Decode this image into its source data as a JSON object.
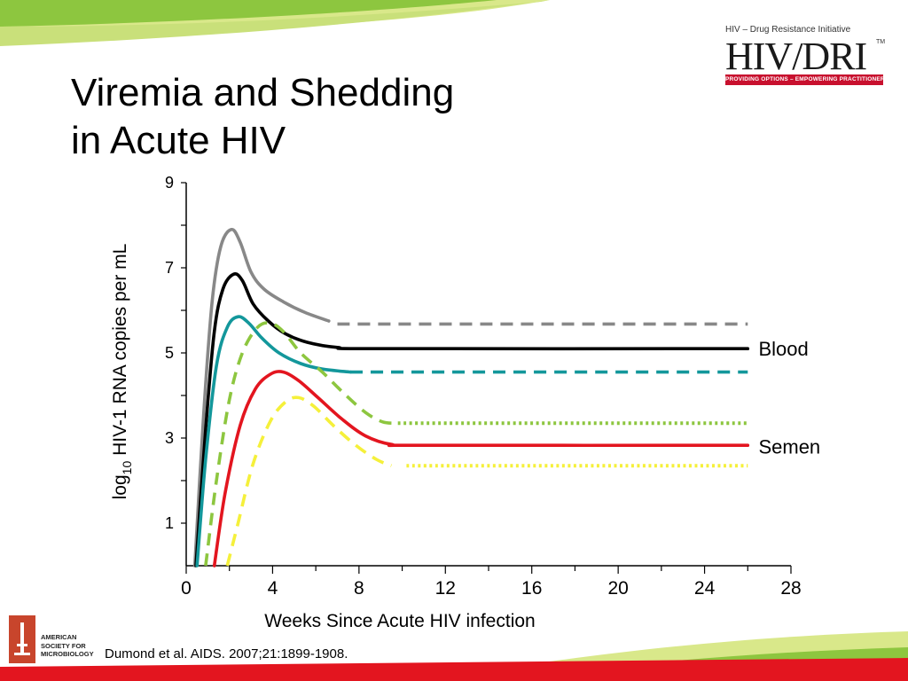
{
  "slide": {
    "title_line1": "Viremia and Shedding",
    "title_line2": "in Acute HIV",
    "citation": "Dumond et al. AIDS. 2007;21:1899-1908.",
    "logo_hiv": {
      "initiative": "HIV – Drug Resistance Initiative",
      "brand": "HIV/DRI",
      "tm": "TM",
      "tagline": "PROVIDING OPTIONS – EMPOWERING PRACTITIONERS"
    },
    "logo_asm": {
      "lines": [
        "AMERICAN",
        "SOCIETY FOR",
        "MICROBIOLOGY"
      ]
    },
    "colors": {
      "accent_green": "#8dc63f",
      "accent_light_green": "#c9e07a",
      "accent_red": "#e3151f"
    }
  },
  "chart_data": {
    "type": "line",
    "xlabel": "Weeks Since Acute HIV infection",
    "ylabel_prefix": "log",
    "ylabel_sub": "10",
    "ylabel_suffix": " HIV-1 RNA copies per mL",
    "xlim": [
      0,
      28
    ],
    "ylim": [
      0,
      9
    ],
    "xticks": [
      0,
      4,
      8,
      12,
      16,
      20,
      24,
      28
    ],
    "yticks": [
      1,
      3,
      5,
      7,
      9
    ],
    "grid": false,
    "annotations": [
      {
        "text": "Blood",
        "x": 26.5,
        "y": 5.1
      },
      {
        "text": "Semen",
        "x": 26.5,
        "y": 2.8
      }
    ],
    "series": [
      {
        "color": "#888888",
        "solid": [
          [
            0.4,
            0
          ],
          [
            0.8,
            3.5
          ],
          [
            1.2,
            6.2
          ],
          [
            1.6,
            7.5
          ],
          [
            2.1,
            7.9
          ],
          [
            2.5,
            7.6
          ],
          [
            3.0,
            6.9
          ],
          [
            3.6,
            6.5
          ],
          [
            4.5,
            6.2
          ],
          [
            5.5,
            5.95
          ],
          [
            6.6,
            5.75
          ]
        ],
        "dashed": [
          [
            7.0,
            5.68
          ],
          [
            26.0,
            5.68
          ]
        ],
        "dash_style": "dashed"
      },
      {
        "color": "#000000",
        "solid": [
          [
            0.45,
            0
          ],
          [
            0.9,
            3.2
          ],
          [
            1.3,
            5.5
          ],
          [
            1.7,
            6.5
          ],
          [
            2.2,
            6.85
          ],
          [
            2.6,
            6.7
          ],
          [
            3.1,
            6.15
          ],
          [
            3.8,
            5.75
          ],
          [
            4.6,
            5.45
          ],
          [
            5.6,
            5.25
          ],
          [
            7.0,
            5.13
          ],
          [
            9.0,
            5.1
          ],
          [
            26.0,
            5.1
          ]
        ],
        "dashed": [],
        "dash_style": "dashed"
      },
      {
        "color": "#13979b",
        "solid": [
          [
            0.5,
            0
          ],
          [
            0.9,
            2.5
          ],
          [
            1.4,
            4.7
          ],
          [
            1.9,
            5.6
          ],
          [
            2.4,
            5.85
          ],
          [
            2.9,
            5.7
          ],
          [
            3.5,
            5.35
          ],
          [
            4.3,
            5.0
          ],
          [
            5.3,
            4.75
          ],
          [
            6.3,
            4.62
          ],
          [
            7.6,
            4.55
          ]
        ],
        "dashed": [
          [
            7.6,
            4.55
          ],
          [
            26.0,
            4.55
          ]
        ],
        "dash_style": "dashed"
      },
      {
        "color": "#8dc63f",
        "solid": [],
        "dashed": [
          [
            0.9,
            0
          ],
          [
            1.4,
            2.0
          ],
          [
            2.0,
            3.9
          ],
          [
            2.6,
            5.0
          ],
          [
            3.3,
            5.6
          ],
          [
            3.9,
            5.7
          ],
          [
            4.5,
            5.5
          ],
          [
            5.3,
            5.0
          ],
          [
            6.3,
            4.55
          ],
          [
            7.3,
            4.05
          ],
          [
            8.3,
            3.6
          ],
          [
            9.1,
            3.38
          ],
          [
            9.8,
            3.35
          ]
        ],
        "dash_style": "dashed"
      },
      {
        "color": "#8dc63f",
        "solid": [],
        "dashed": [
          [
            9.8,
            3.35
          ],
          [
            26.0,
            3.35
          ]
        ],
        "dash_style": "dotted"
      },
      {
        "color": "#e3151f",
        "solid": [
          [
            1.3,
            0
          ],
          [
            1.8,
            1.7
          ],
          [
            2.5,
            3.3
          ],
          [
            3.2,
            4.15
          ],
          [
            3.9,
            4.5
          ],
          [
            4.5,
            4.55
          ],
          [
            5.2,
            4.35
          ],
          [
            6.1,
            3.95
          ],
          [
            7.2,
            3.45
          ],
          [
            8.3,
            3.05
          ],
          [
            9.5,
            2.85
          ],
          [
            11.0,
            2.83
          ],
          [
            26.0,
            2.83
          ]
        ],
        "dashed": [],
        "dash_style": "dashed"
      },
      {
        "color": "#f5f03a",
        "solid": [],
        "dashed": [
          [
            1.9,
            0
          ],
          [
            2.4,
            1.0
          ],
          [
            3.1,
            2.4
          ],
          [
            3.9,
            3.4
          ],
          [
            4.6,
            3.85
          ],
          [
            5.2,
            3.95
          ],
          [
            5.9,
            3.75
          ],
          [
            6.8,
            3.3
          ],
          [
            7.8,
            2.85
          ],
          [
            8.8,
            2.5
          ],
          [
            9.5,
            2.35
          ]
        ],
        "dash_style": "dashed"
      },
      {
        "color": "#f5f03a",
        "solid": [],
        "dashed": [
          [
            10.2,
            2.35
          ],
          [
            26.0,
            2.35
          ]
        ],
        "dash_style": "dotted"
      }
    ]
  }
}
